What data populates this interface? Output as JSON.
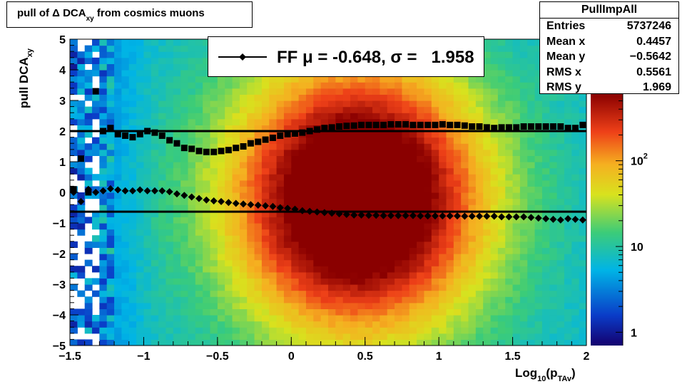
{
  "title": {
    "prefix": "pull of Δ DCA",
    "sub": "xy",
    "suffix": " from cosmics muons"
  },
  "stats": {
    "title": "PullImpAll",
    "rows": [
      {
        "label": "Entries",
        "value": "5737246"
      },
      {
        "label": "Mean x",
        "value": "0.4457"
      },
      {
        "label": "Mean y",
        "value": "−0.5642"
      },
      {
        "label": "RMS x",
        "value": "0.5561"
      },
      {
        "label": "RMS y",
        "value": "1.969"
      }
    ]
  },
  "legend": {
    "text": "FF μ = -0.648, σ =   1.958"
  },
  "chart_data": {
    "type": "heatmap",
    "xlabel": {
      "prefix": "Log",
      "sub1": "10",
      "mid": "(p",
      "sub2": "TAv",
      "suffix": ")"
    },
    "ylabel": {
      "prefix": "pull DCA",
      "sub": "xy"
    },
    "xlim": [
      -1.5,
      2
    ],
    "ylim": [
      -5,
      5
    ],
    "x_ticks": [
      -1.5,
      -1,
      -0.5,
      0,
      0.5,
      1,
      1.5,
      2
    ],
    "x_tick_labels": [
      "−1.5",
      "−1",
      "−0.5",
      "0",
      "0.5",
      "1",
      "1.5",
      "2"
    ],
    "y_ticks": [
      -5,
      -4,
      -3,
      -2,
      -1,
      0,
      1,
      2,
      3,
      4,
      5
    ],
    "y_tick_labels": [
      "−5",
      "−4",
      "−3",
      "−2",
      "−1",
      "0",
      "1",
      "2",
      "3",
      "4",
      "5"
    ],
    "z_scale": "log",
    "z_tick_labels": [
      {
        "value": 1,
        "text": "1"
      },
      {
        "value": 10,
        "text": "10"
      },
      {
        "value": 100,
        "base": "10",
        "exp": "2"
      }
    ],
    "series": [
      {
        "marker": "diamond",
        "x": [
          -1.475,
          -1.425,
          -1.375,
          -1.325,
          -1.275,
          -1.225,
          -1.175,
          -1.125,
          -1.075,
          -1.025,
          -0.975,
          -0.925,
          -0.875,
          -0.825,
          -0.775,
          -0.725,
          -0.675,
          -0.625,
          -0.575,
          -0.525,
          -0.475,
          -0.425,
          -0.375,
          -0.325,
          -0.275,
          -0.225,
          -0.175,
          -0.125,
          -0.075,
          -0.025,
          0.025,
          0.075,
          0.125,
          0.175,
          0.225,
          0.275,
          0.325,
          0.375,
          0.425,
          0.475,
          0.525,
          0.575,
          0.625,
          0.675,
          0.725,
          0.775,
          0.825,
          0.875,
          0.925,
          0.975,
          1.025,
          1.075,
          1.125,
          1.175,
          1.225,
          1.275,
          1.325,
          1.375,
          1.425,
          1.475,
          1.525,
          1.575,
          1.625,
          1.675,
          1.725,
          1.775,
          1.825,
          1.875,
          1.925,
          1.975
        ],
        "y": [
          0.0,
          -0.3,
          0.1,
          0.0,
          0.05,
          0.12,
          0.08,
          0.05,
          0.05,
          0.08,
          0.05,
          0.05,
          0.05,
          0.02,
          -0.05,
          -0.1,
          -0.15,
          -0.2,
          -0.25,
          -0.28,
          -0.3,
          -0.33,
          -0.36,
          -0.38,
          -0.4,
          -0.42,
          -0.44,
          -0.46,
          -0.5,
          -0.52,
          -0.55,
          -0.6,
          -0.62,
          -0.64,
          -0.66,
          -0.68,
          -0.7,
          -0.72,
          -0.74,
          -0.74,
          -0.75,
          -0.75,
          -0.76,
          -0.76,
          -0.76,
          -0.76,
          -0.76,
          -0.77,
          -0.77,
          -0.77,
          -0.77,
          -0.77,
          -0.77,
          -0.78,
          -0.78,
          -0.78,
          -0.78,
          -0.78,
          -0.8,
          -0.8,
          -0.8,
          -0.8,
          -0.82,
          -0.84,
          -0.86,
          -0.88,
          -0.9,
          -0.86,
          -0.88,
          -0.9
        ]
      },
      {
        "marker": "square",
        "x": [
          -1.475,
          -1.425,
          -1.375,
          -1.325,
          -1.275,
          -1.225,
          -1.175,
          -1.125,
          -1.075,
          -1.025,
          -0.975,
          -0.925,
          -0.875,
          -0.825,
          -0.775,
          -0.725,
          -0.675,
          -0.625,
          -0.575,
          -0.525,
          -0.475,
          -0.425,
          -0.375,
          -0.325,
          -0.275,
          -0.225,
          -0.175,
          -0.125,
          -0.075,
          -0.025,
          0.025,
          0.075,
          0.125,
          0.175,
          0.225,
          0.275,
          0.325,
          0.375,
          0.425,
          0.475,
          0.525,
          0.575,
          0.625,
          0.675,
          0.725,
          0.775,
          0.825,
          0.875,
          0.925,
          0.975,
          1.025,
          1.075,
          1.125,
          1.175,
          1.225,
          1.275,
          1.325,
          1.375,
          1.425,
          1.475,
          1.525,
          1.575,
          1.625,
          1.675,
          1.725,
          1.775,
          1.825,
          1.875,
          1.925,
          1.975
        ],
        "y": [
          0.1,
          1.1,
          0.0,
          3.3,
          2.0,
          2.1,
          1.9,
          1.85,
          1.8,
          1.9,
          2.0,
          1.95,
          1.85,
          1.7,
          1.6,
          1.45,
          1.42,
          1.35,
          1.32,
          1.32,
          1.35,
          1.38,
          1.45,
          1.5,
          1.6,
          1.65,
          1.72,
          1.78,
          1.85,
          1.9,
          1.92,
          1.95,
          2.0,
          2.05,
          2.1,
          2.12,
          2.15,
          2.17,
          2.18,
          2.2,
          2.2,
          2.2,
          2.2,
          2.22,
          2.22,
          2.22,
          2.2,
          2.2,
          2.2,
          2.2,
          2.22,
          2.2,
          2.2,
          2.18,
          2.15,
          2.15,
          2.12,
          2.1,
          2.12,
          2.12,
          2.12,
          2.15,
          2.15,
          2.15,
          2.15,
          2.15,
          2.15,
          2.1,
          2.1,
          2.2
        ]
      }
    ],
    "reference_lines_y": [
      2.0,
      -0.63
    ]
  }
}
